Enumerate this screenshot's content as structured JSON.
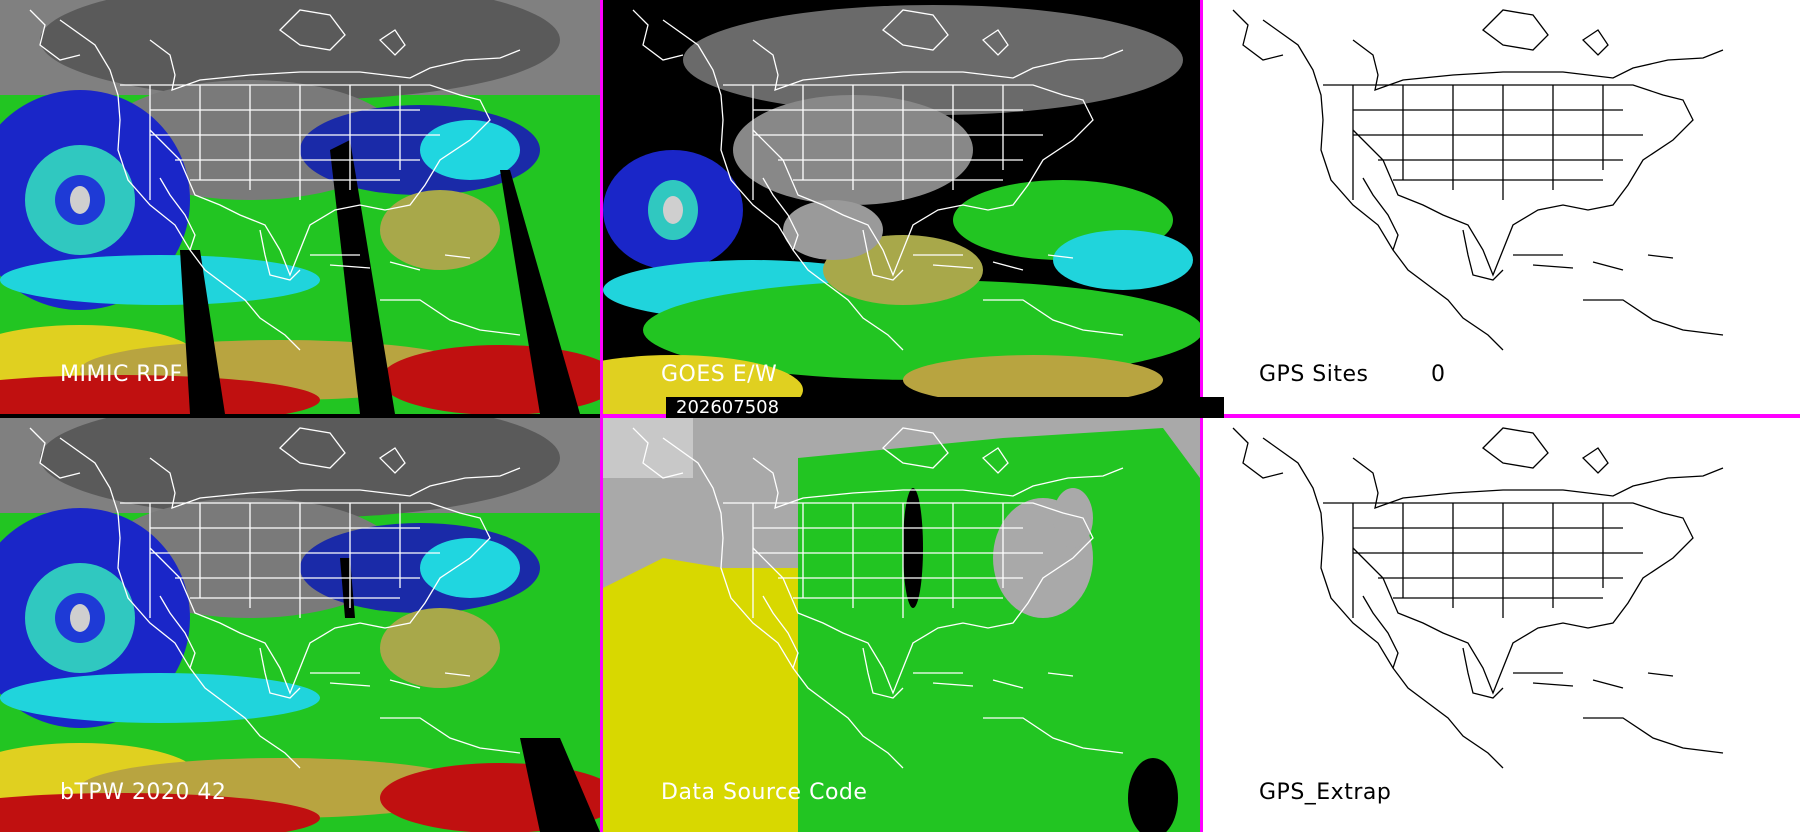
{
  "timestamp": "202607508",
  "colors": {
    "separator": "#ff00ff"
  },
  "panels": {
    "mimic": {
      "label": "MIMIC RDF"
    },
    "goes": {
      "label": "GOES E/W"
    },
    "gps_sites": {
      "label": "GPS Sites",
      "count": "0"
    },
    "btpw": {
      "label": "bTPW 2020 42"
    },
    "source": {
      "label": "Data Source Code"
    },
    "gps_extrap": {
      "label": "GPS_Extrap"
    }
  }
}
